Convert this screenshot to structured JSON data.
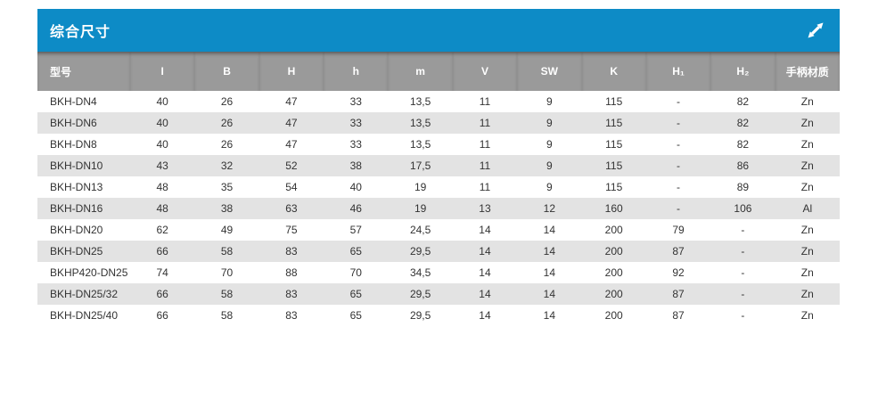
{
  "panel": {
    "title": "综合尺寸",
    "accent_color": "#0d8bc6",
    "header_bg": "#9a9a9a",
    "stripe_bg": "#e3e3e3",
    "expand_icon": "expand-diagonal-arrow",
    "icon_color": "#ffffff"
  },
  "table": {
    "columns": [
      "型号",
      "I",
      "B",
      "H",
      "h",
      "m",
      "V",
      "SW",
      "K",
      "H₁",
      "H₂",
      "手柄材质"
    ],
    "rows": [
      [
        "BKH-DN4",
        "40",
        "26",
        "47",
        "33",
        "13,5",
        "11",
        "9",
        "115",
        "-",
        "82",
        "Zn"
      ],
      [
        "BKH-DN6",
        "40",
        "26",
        "47",
        "33",
        "13,5",
        "11",
        "9",
        "115",
        "-",
        "82",
        "Zn"
      ],
      [
        "BKH-DN8",
        "40",
        "26",
        "47",
        "33",
        "13,5",
        "11",
        "9",
        "115",
        "-",
        "82",
        "Zn"
      ],
      [
        "BKH-DN10",
        "43",
        "32",
        "52",
        "38",
        "17,5",
        "11",
        "9",
        "115",
        "-",
        "86",
        "Zn"
      ],
      [
        "BKH-DN13",
        "48",
        "35",
        "54",
        "40",
        "19",
        "11",
        "9",
        "115",
        "-",
        "89",
        "Zn"
      ],
      [
        "BKH-DN16",
        "48",
        "38",
        "63",
        "46",
        "19",
        "13",
        "12",
        "160",
        "-",
        "106",
        "Al"
      ],
      [
        "BKH-DN20",
        "62",
        "49",
        "75",
        "57",
        "24,5",
        "14",
        "14",
        "200",
        "79",
        "-",
        "Zn"
      ],
      [
        "BKH-DN25",
        "66",
        "58",
        "83",
        "65",
        "29,5",
        "14",
        "14",
        "200",
        "87",
        "-",
        "Zn"
      ],
      [
        "BKHP420-DN25",
        "74",
        "70",
        "88",
        "70",
        "34,5",
        "14",
        "14",
        "200",
        "92",
        "-",
        "Zn"
      ],
      [
        "BKH-DN25/32",
        "66",
        "58",
        "83",
        "65",
        "29,5",
        "14",
        "14",
        "200",
        "87",
        "-",
        "Zn"
      ],
      [
        "BKH-DN25/40",
        "66",
        "58",
        "83",
        "65",
        "29,5",
        "14",
        "14",
        "200",
        "87",
        "-",
        "Zn"
      ]
    ]
  }
}
